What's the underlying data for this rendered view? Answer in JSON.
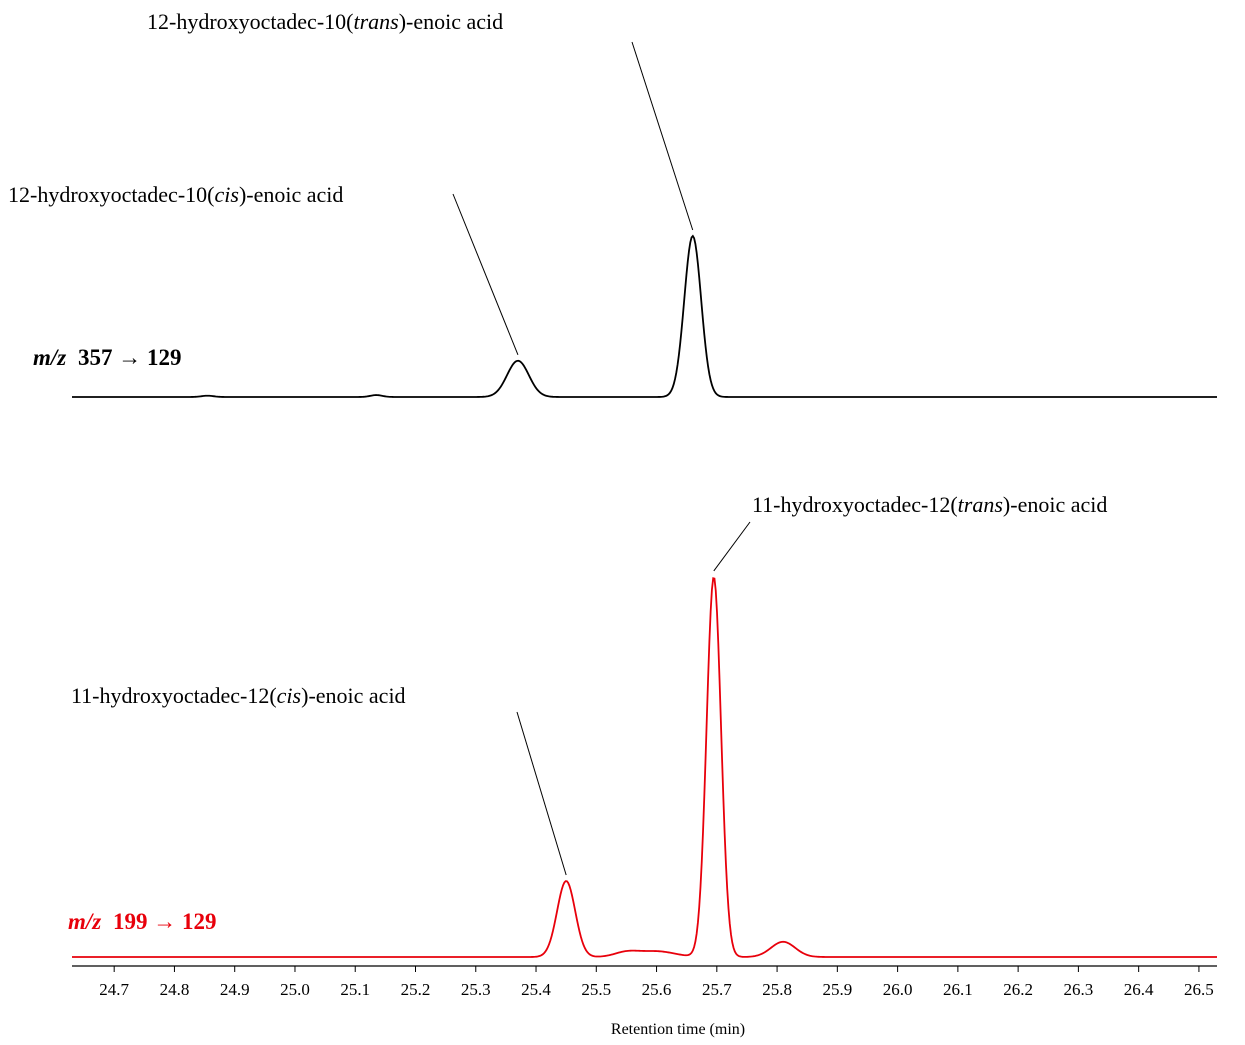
{
  "chart_data": {
    "type": "line",
    "xlabel": "Retention time (min)",
    "xlim": [
      24.63,
      26.53
    ],
    "xticks": [
      "24.7",
      "24.8",
      "24.9",
      "25.0",
      "25.1",
      "25.2",
      "25.3",
      "25.4",
      "25.5",
      "25.6",
      "25.7",
      "25.8",
      "25.9",
      "26.0",
      "26.1",
      "26.2",
      "26.3",
      "26.4",
      "26.5"
    ],
    "series": [
      {
        "name_prefix": "m/z",
        "name_rest": "357 → 129",
        "color": "#000000",
        "baseline_max": 1.0,
        "peaks": [
          {
            "x": 25.37,
            "height": 0.225,
            "width": 0.018
          },
          {
            "x": 25.66,
            "height": 1.0,
            "width": 0.014
          },
          {
            "x": 25.135,
            "height": 0.012,
            "width": 0.01
          },
          {
            "x": 24.855,
            "height": 0.008,
            "width": 0.01
          }
        ],
        "annotations": [
          {
            "pre": "12-hydroxyoctadec-10(",
            "it": "cis",
            "post": ")-enoic acid",
            "peak_x": 25.37
          },
          {
            "pre": "12-hydroxyoctadec-10(",
            "it": "trans",
            "post": ")-enoic acid",
            "peak_x": 25.66
          }
        ]
      },
      {
        "name_prefix": "m/z",
        "name_rest": "199 → 129",
        "color": "#e8000b",
        "baseline_max": 1.0,
        "peaks": [
          {
            "x": 25.45,
            "height": 0.2,
            "width": 0.015
          },
          {
            "x": 25.695,
            "height": 1.0,
            "width": 0.012
          },
          {
            "x": 25.81,
            "height": 0.04,
            "width": 0.02
          },
          {
            "x": 25.55,
            "height": 0.012,
            "width": 0.02
          },
          {
            "x": 25.6,
            "height": 0.015,
            "width": 0.03
          }
        ],
        "annotations": [
          {
            "pre": "11-hydroxyoctadec-12(",
            "it": "cis",
            "post": ")-enoic acid",
            "peak_x": 25.45
          },
          {
            "pre": "11-hydroxyoctadec-12(",
            "it": "trans",
            "post": ")-enoic acid",
            "peak_x": 25.695
          }
        ]
      }
    ]
  }
}
